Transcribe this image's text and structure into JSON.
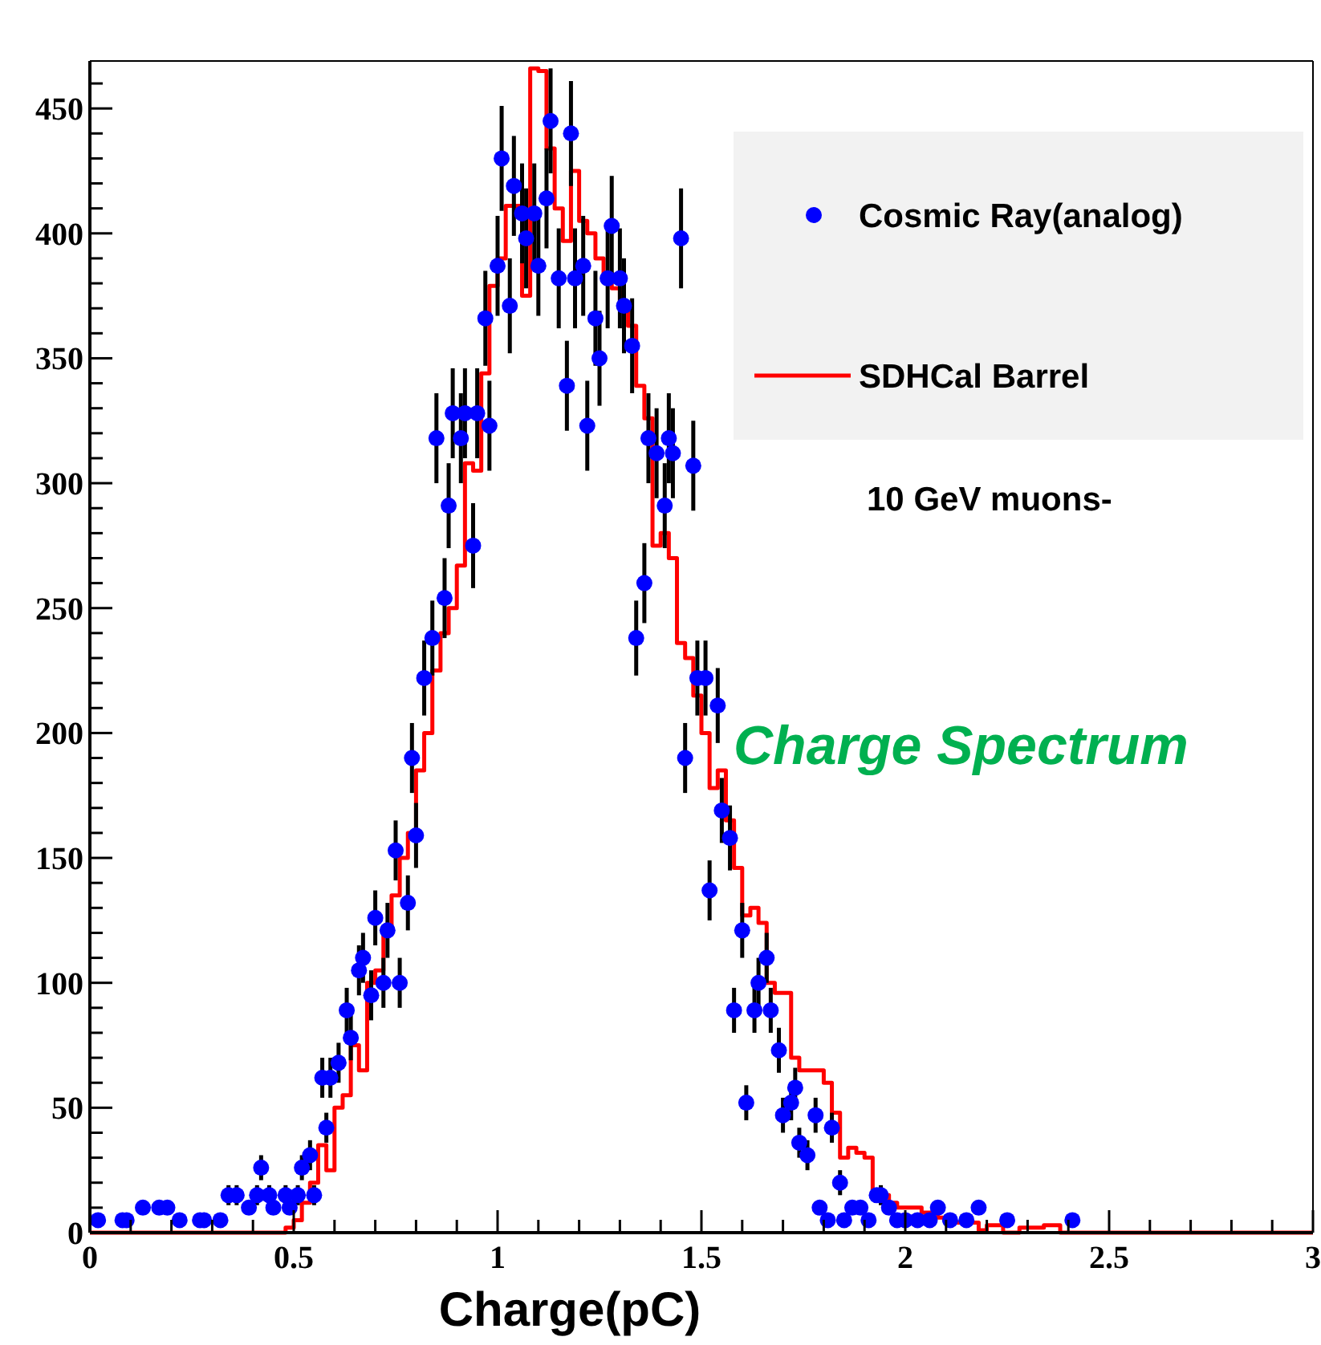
{
  "chart_data": {
    "type": "scatter",
    "xlabel": "Charge(pC)",
    "xlim": [
      0,
      3
    ],
    "ylim": [
      0,
      469
    ],
    "xticks": [
      0,
      {
        "value": 0.1,
        "label": null
      },
      {
        "value": 0.2,
        "label": null
      },
      {
        "value": 0.3,
        "label": null
      },
      {
        "value": 0.4,
        "label": null
      },
      0.5,
      {
        "value": 0.6,
        "label": null
      },
      {
        "value": 0.7,
        "label": null
      },
      {
        "value": 0.8,
        "label": null
      },
      {
        "value": 0.9,
        "label": null
      },
      1,
      {
        "value": 1.1,
        "label": null
      },
      {
        "value": 1.2,
        "label": null
      },
      {
        "value": 1.3,
        "label": null
      },
      {
        "value": 1.4,
        "label": null
      },
      1.5,
      {
        "value": 1.6,
        "label": null
      },
      {
        "value": 1.7,
        "label": null
      },
      {
        "value": 1.8,
        "label": null
      },
      {
        "value": 1.9,
        "label": null
      },
      2,
      {
        "value": 2.1,
        "label": null
      },
      {
        "value": 2.2,
        "label": null
      },
      {
        "value": 2.3,
        "label": null
      },
      {
        "value": 2.4,
        "label": null
      },
      2.5,
      {
        "value": 2.6,
        "label": null
      },
      {
        "value": 2.7,
        "label": null
      },
      {
        "value": 2.8,
        "label": null
      },
      {
        "value": 2.9,
        "label": null
      },
      3
    ],
    "yticks": [
      0,
      {
        "value": 10,
        "label": null
      },
      {
        "value": 20,
        "label": null
      },
      {
        "value": 30,
        "label": null
      },
      {
        "value": 40,
        "label": null
      },
      50,
      {
        "value": 60,
        "label": null
      },
      {
        "value": 70,
        "label": null
      },
      {
        "value": 80,
        "label": null
      },
      {
        "value": 90,
        "label": null
      },
      100,
      {
        "value": 110,
        "label": null
      },
      {
        "value": 120,
        "label": null
      },
      {
        "value": 130,
        "label": null
      },
      {
        "value": 140,
        "label": null
      },
      150,
      {
        "value": 160,
        "label": null
      },
      {
        "value": 170,
        "label": null
      },
      {
        "value": 180,
        "label": null
      },
      {
        "value": 190,
        "label": null
      },
      200,
      {
        "value": 210,
        "label": null
      },
      {
        "value": 220,
        "label": null
      },
      {
        "value": 230,
        "label": null
      },
      {
        "value": 240,
        "label": null
      },
      250,
      {
        "value": 260,
        "label": null
      },
      {
        "value": 270,
        "label": null
      },
      {
        "value": 280,
        "label": null
      },
      {
        "value": 290,
        "label": null
      },
      300,
      {
        "value": 310,
        "label": null
      },
      {
        "value": 320,
        "label": null
      },
      {
        "value": 330,
        "label": null
      },
      {
        "value": 340,
        "label": null
      },
      350,
      {
        "value": 360,
        "label": null
      },
      {
        "value": 370,
        "label": null
      },
      {
        "value": 380,
        "label": null
      },
      {
        "value": 390,
        "label": null
      },
      400,
      {
        "value": 410,
        "label": null
      },
      {
        "value": 420,
        "label": null
      },
      {
        "value": 430,
        "label": null
      },
      {
        "value": 440,
        "label": null
      },
      450,
      {
        "value": 460,
        "label": null
      }
    ],
    "grid": false,
    "legend": "top right",
    "annotations": [
      "10 GeV muons-",
      "Charge Spectrum"
    ],
    "series": [
      {
        "name": "Cosmic Ray(analog)",
        "marker": "circle",
        "color": "#0000ff",
        "x": [
          0.02,
          0.08,
          0.09,
          0.13,
          0.17,
          0.19,
          0.22,
          0.27,
          0.28,
          0.32,
          0.34,
          0.36,
          0.39,
          0.41,
          0.42,
          0.44,
          0.45,
          0.48,
          0.49,
          0.51,
          0.52,
          0.54,
          0.55,
          0.57,
          0.58,
          0.59,
          0.61,
          0.63,
          0.64,
          0.66,
          0.67,
          0.69,
          0.7,
          0.72,
          0.73,
          0.75,
          0.76,
          0.78,
          0.79,
          0.8,
          0.82,
          0.84,
          0.85,
          0.87,
          0.88,
          0.89,
          0.91,
          0.92,
          0.94,
          0.95,
          0.97,
          0.98,
          1.0,
          1.01,
          1.03,
          1.04,
          1.06,
          1.07,
          1.09,
          1.1,
          1.12,
          1.13,
          1.15,
          1.17,
          1.18,
          1.19,
          1.21,
          1.22,
          1.24,
          1.25,
          1.27,
          1.28,
          1.3,
          1.31,
          1.33,
          1.34,
          1.36,
          1.37,
          1.39,
          1.41,
          1.42,
          1.43,
          1.45,
          1.46,
          1.48,
          1.49,
          1.51,
          1.52,
          1.54,
          1.55,
          1.57,
          1.58,
          1.6,
          1.61,
          1.63,
          1.64,
          1.66,
          1.67,
          1.69,
          1.7,
          1.72,
          1.73,
          1.74,
          1.76,
          1.78,
          1.79,
          1.81,
          1.82,
          1.84,
          1.85,
          1.87,
          1.89,
          1.91,
          1.93,
          1.94,
          1.96,
          1.98,
          2.0,
          2.03,
          2.06,
          2.08,
          2.11,
          2.15,
          2.18,
          2.25,
          2.41
        ],
        "values": [
          5,
          5,
          5,
          10,
          10,
          10,
          5,
          5,
          5,
          5,
          15,
          15,
          10,
          15,
          26,
          15,
          10,
          15,
          10,
          15,
          26,
          31,
          15,
          62,
          42,
          62,
          68,
          89,
          78,
          105,
          110,
          95,
          126,
          100,
          121,
          153,
          100,
          132,
          190,
          159,
          222,
          238,
          318,
          254,
          291,
          328,
          318,
          328,
          275,
          328,
          366,
          323,
          387,
          430,
          371,
          419,
          408,
          398,
          408,
          387,
          414,
          445,
          382,
          339,
          440,
          382,
          387,
          323,
          366,
          350,
          382,
          403,
          382,
          371,
          355,
          238,
          260,
          318,
          312,
          291,
          318,
          312,
          398,
          190,
          307,
          222,
          222,
          137,
          211,
          169,
          158,
          89,
          121,
          52,
          89,
          100,
          110,
          89,
          73,
          47,
          52,
          58,
          36,
          31,
          47,
          10,
          5,
          42,
          20,
          5,
          10,
          10,
          5,
          15,
          15,
          10,
          5,
          5,
          5,
          5,
          10,
          5,
          5,
          10,
          5,
          5
        ],
        "errors": [
          null,
          null,
          null,
          null,
          null,
          null,
          null,
          null,
          null,
          null,
          4,
          4,
          null,
          4,
          5,
          4,
          null,
          4,
          null,
          4,
          5,
          6,
          4,
          8,
          6,
          8,
          8,
          9,
          9,
          10,
          10,
          10,
          11,
          10,
          11,
          12,
          10,
          11,
          14,
          13,
          15,
          15,
          18,
          16,
          17,
          18,
          18,
          18,
          17,
          18,
          19,
          18,
          20,
          21,
          19,
          20,
          20,
          20,
          20,
          20,
          20,
          21,
          20,
          18,
          21,
          20,
          20,
          18,
          19,
          19,
          20,
          20,
          20,
          19,
          19,
          15,
          16,
          18,
          18,
          17,
          18,
          18,
          20,
          14,
          18,
          15,
          15,
          12,
          15,
          13,
          13,
          9,
          11,
          7,
          9,
          10,
          10,
          9,
          9,
          7,
          7,
          8,
          6,
          6,
          7,
          null,
          null,
          6,
          5,
          null,
          null,
          null,
          null,
          null,
          4,
          null,
          null,
          null,
          null,
          null,
          null,
          null,
          null,
          null,
          null,
          null
        ]
      },
      {
        "name": "SDHCal Barrel",
        "type": "step",
        "color": "#ff0000",
        "x": [
          0,
          0.48,
          0.5,
          0.52,
          0.54,
          0.56,
          0.58,
          0.6,
          0.62,
          0.64,
          0.66,
          0.68,
          0.7,
          0.72,
          0.74,
          0.76,
          0.78,
          0.8,
          0.82,
          0.84,
          0.86,
          0.88,
          0.9,
          0.92,
          0.94,
          0.96,
          0.98,
          1.0,
          1.02,
          1.04,
          1.06,
          1.08,
          1.1,
          1.12,
          1.14,
          1.16,
          1.18,
          1.2,
          1.22,
          1.24,
          1.26,
          1.28,
          1.3,
          1.32,
          1.34,
          1.36,
          1.38,
          1.4,
          1.42,
          1.44,
          1.46,
          1.48,
          1.5,
          1.52,
          1.54,
          1.56,
          1.58,
          1.6,
          1.62,
          1.64,
          1.66,
          1.68,
          1.7,
          1.72,
          1.74,
          1.76,
          1.78,
          1.8,
          1.82,
          1.84,
          1.86,
          1.88,
          1.9,
          1.92,
          1.94,
          1.96,
          1.98,
          2.0,
          2.04,
          2.08,
          2.12,
          2.18,
          2.2,
          2.24,
          2.28,
          2.34,
          2.38,
          3.0
        ],
        "values": [
          0,
          2,
          5,
          12,
          20,
          35,
          25,
          50,
          55,
          75,
          65,
          100,
          105,
          120,
          135,
          150,
          160,
          185,
          200,
          225,
          240,
          250,
          267,
          308,
          305,
          344,
          379,
          390,
          411,
          411,
          375,
          466,
          465,
          434,
          410,
          397,
          425,
          405,
          400,
          390,
          384,
          378,
          370,
          363,
          339,
          326,
          275,
          280,
          270,
          236,
          230,
          215,
          200,
          178,
          185,
          165,
          146,
          127,
          130,
          124,
          100,
          96,
          96,
          70,
          65,
          65,
          65,
          60,
          48,
          30,
          34,
          32,
          30,
          17,
          15,
          12,
          10,
          10,
          8,
          6,
          4,
          1,
          3,
          0,
          2,
          3,
          0,
          0
        ]
      }
    ]
  }
}
